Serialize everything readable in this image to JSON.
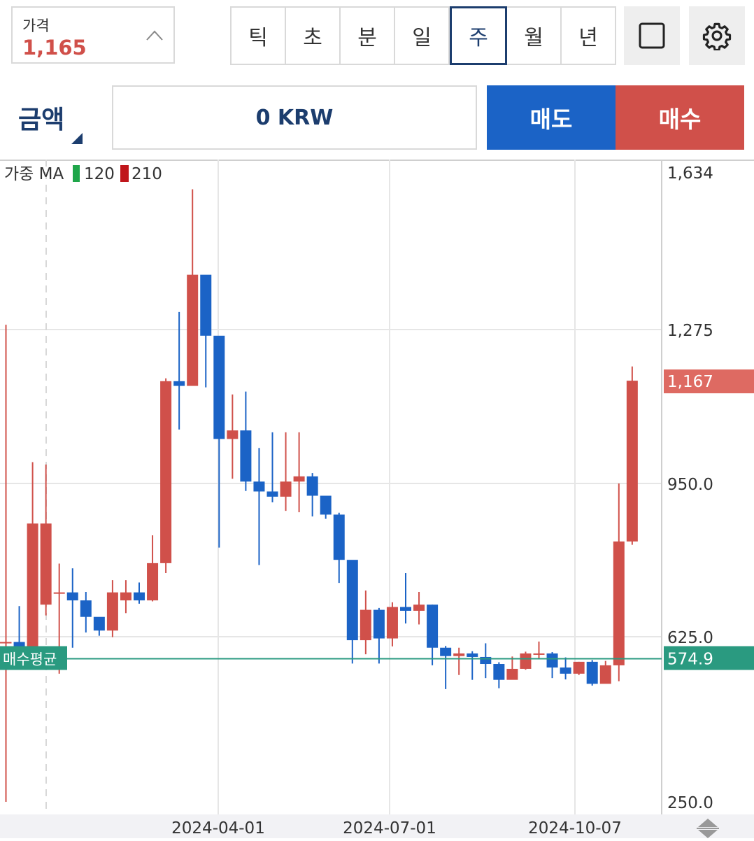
{
  "price_box": {
    "label": "가격",
    "value": "1,165"
  },
  "periods": [
    {
      "label": "틱",
      "active": false
    },
    {
      "label": "초",
      "active": false
    },
    {
      "label": "분",
      "active": false
    },
    {
      "label": "일",
      "active": false
    },
    {
      "label": "주",
      "active": true
    },
    {
      "label": "월",
      "active": false
    },
    {
      "label": "년",
      "active": false
    }
  ],
  "toolbar": {
    "square_icon": "square-icon",
    "settings_icon": "gear-icon"
  },
  "order": {
    "amount_label": "금액",
    "amount_value": "0 KRW",
    "sell_label": "매도",
    "buy_label": "매수"
  },
  "colors": {
    "up": "#d0504a",
    "down": "#1b63c6",
    "avg_line": "#2a9a80",
    "accent": "#1c3d6e"
  },
  "chart_data": {
    "type": "candlestick",
    "indicator": {
      "name": "가중 MA",
      "periods": [
        "120",
        "210"
      ],
      "colors": [
        "#1fa64a",
        "#c0161b"
      ]
    },
    "y_ticks": [
      "1,634",
      "1,275",
      "950.0",
      "625.0",
      "250.0"
    ],
    "y_tick_values": [
      1634,
      1275,
      950,
      625,
      250
    ],
    "x_ticks": [
      "2024-04-01",
      "2024-07-01",
      "2024-10-07"
    ],
    "current_price": {
      "label": "1,167",
      "value": 1167
    },
    "avg_buy": {
      "tag": "매수평균",
      "label": "574.9",
      "value": 574.9
    },
    "candles": [
      [
        613,
        613,
        1286,
        250
      ],
      [
        613,
        593,
        690,
        570
      ],
      [
        587,
        865,
        995,
        570
      ],
      [
        693,
        865,
        990,
        670
      ],
      [
        719,
        719,
        780,
        541
      ],
      [
        719,
        702,
        770,
        600
      ],
      [
        702,
        667,
        720,
        634
      ],
      [
        667,
        638,
        660,
        627
      ],
      [
        638,
        719,
        745,
        624
      ],
      [
        702,
        719,
        745,
        675
      ],
      [
        719,
        702,
        740,
        695
      ],
      [
        702,
        781,
        840,
        700
      ],
      [
        781,
        1166,
        1172,
        760
      ],
      [
        1166,
        1156,
        1315,
        1064
      ],
      [
        1156,
        1400,
        1595,
        1160
      ],
      [
        1400,
        1262,
        1398,
        1153
      ],
      [
        1262,
        1044,
        1255,
        814
      ],
      [
        1044,
        1062,
        1138,
        960
      ],
      [
        1062,
        954,
        1144,
        934
      ],
      [
        954,
        933,
        1025,
        777
      ],
      [
        933,
        922,
        1058,
        910
      ],
      [
        922,
        954,
        1058,
        892
      ],
      [
        954,
        965,
        1058,
        889
      ],
      [
        965,
        924,
        972,
        880
      ],
      [
        924,
        884,
        909,
        875
      ],
      [
        884,
        788,
        888,
        739
      ],
      [
        788,
        617,
        709,
        564
      ],
      [
        617,
        682,
        723,
        585
      ],
      [
        682,
        621,
        686,
        564
      ],
      [
        621,
        688,
        698,
        603
      ],
      [
        688,
        680,
        760,
        653
      ],
      [
        680,
        693,
        720,
        651
      ],
      [
        693,
        600,
        693,
        560
      ],
      [
        600,
        581,
        604,
        506
      ],
      [
        581,
        587,
        600,
        538
      ],
      [
        587,
        579,
        592,
        527
      ],
      [
        579,
        563,
        610,
        531
      ],
      [
        563,
        527,
        567,
        508
      ],
      [
        527,
        552,
        580,
        545
      ],
      [
        552,
        587,
        591,
        550
      ],
      [
        587,
        587,
        614,
        575
      ],
      [
        587,
        555,
        590,
        531
      ],
      [
        555,
        541,
        578,
        528
      ],
      [
        541,
        568,
        568,
        538
      ],
      [
        568,
        518,
        572,
        514
      ],
      [
        518,
        560,
        570,
        519
      ],
      [
        560,
        827,
        950,
        524
      ],
      [
        827,
        1167,
        1197,
        820
      ]
    ]
  }
}
